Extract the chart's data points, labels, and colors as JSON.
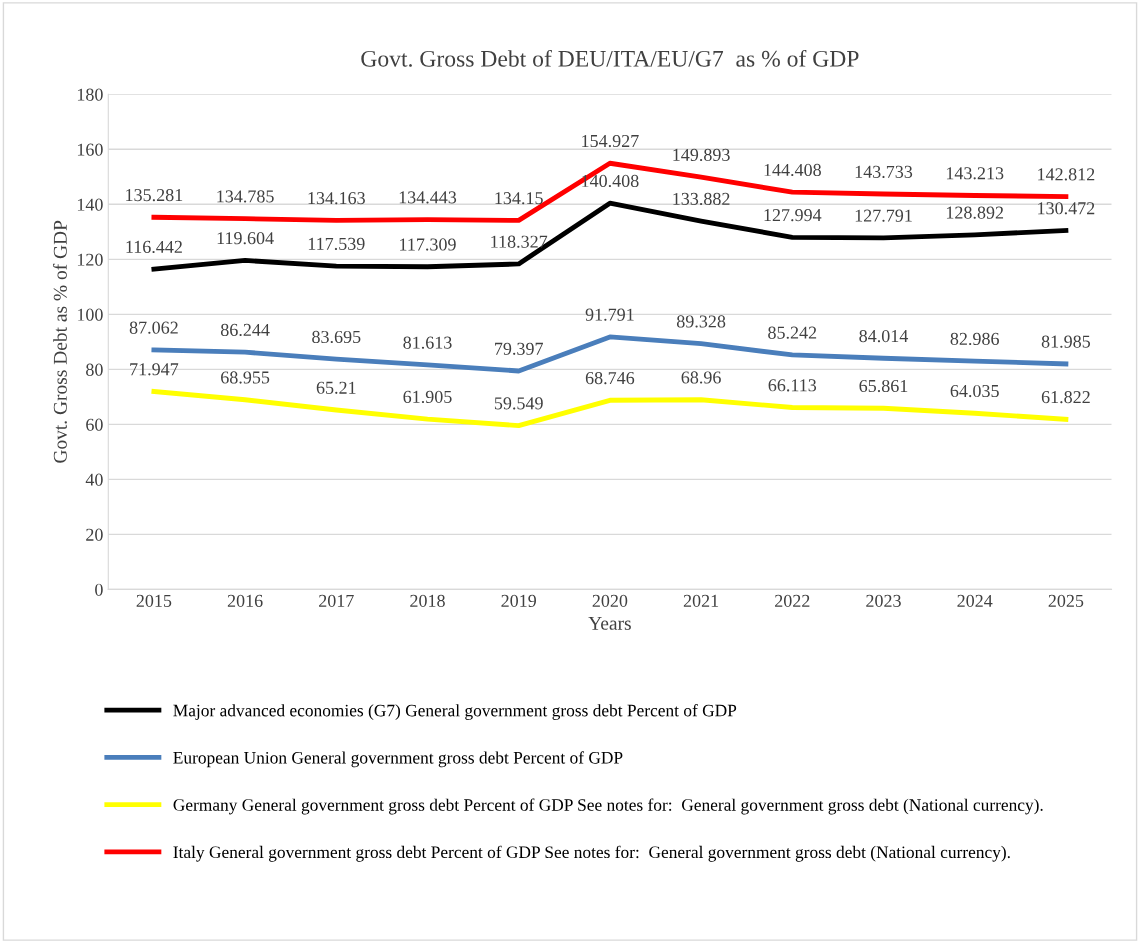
{
  "chart_data": {
    "type": "line",
    "title": "Govt. Gross Debt of DEU/ITA/EU/G7  as % of GDP",
    "xlabel": "Years",
    "ylabel": "Govt. Gross Debt as % of GDP",
    "categories": [
      "2015",
      "2016",
      "2017",
      "2018",
      "2019",
      "2020",
      "2021",
      "2022",
      "2023",
      "2024",
      "2025"
    ],
    "series": [
      {
        "name": "Major advanced economies (G7) General government gross debt Percent of GDP",
        "color": "#000000",
        "values": [
          116.442,
          119.604,
          117.539,
          117.309,
          118.327,
          140.408,
          133.882,
          127.994,
          127.791,
          128.892,
          130.472
        ]
      },
      {
        "name": "European Union General government gross debt Percent of GDP",
        "color": "#4a7ebb",
        "values": [
          87.062,
          86.244,
          83.695,
          81.613,
          79.397,
          91.791,
          89.328,
          85.242,
          84.014,
          82.986,
          81.985
        ]
      },
      {
        "name": "Germany General government gross debt Percent of GDP See notes for:  General government gross debt (National currency).",
        "color": "#ffff00",
        "values": [
          71.947,
          68.955,
          65.21,
          61.905,
          59.549,
          68.746,
          68.96,
          66.113,
          65.861,
          64.035,
          61.822
        ]
      },
      {
        "name": "Italy General government gross debt Percent of GDP See notes for:  General government gross debt (National currency).",
        "color": "#ff0000",
        "values": [
          135.281,
          134.785,
          134.163,
          134.443,
          134.15,
          154.927,
          149.893,
          144.408,
          143.733,
          143.213,
          142.812
        ]
      }
    ],
    "ylim": [
      0,
      180
    ],
    "yticks": [
      0,
      20,
      40,
      60,
      80,
      100,
      120,
      140,
      160,
      180
    ],
    "grid": "y",
    "legend": "bottom",
    "data_labels": true,
    "marker": "none",
    "line_style": "solid"
  }
}
